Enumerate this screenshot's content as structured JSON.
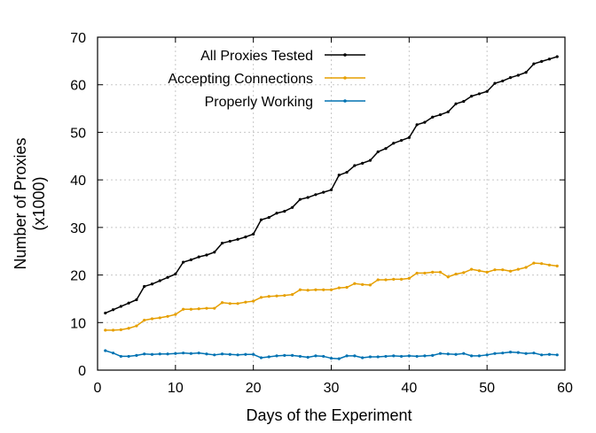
{
  "chart_data": {
    "type": "line",
    "xlabel": "Days of the Experiment",
    "ylabel": [
      "Number of Proxies",
      "(x1000)"
    ],
    "xlim": [
      0,
      60
    ],
    "ylim": [
      0,
      70
    ],
    "xticks": [
      0,
      10,
      20,
      30,
      40,
      50,
      60
    ],
    "yticks": [
      0,
      10,
      20,
      30,
      40,
      50,
      60,
      70
    ],
    "grid": true,
    "legend_position": "top-left",
    "x": [
      1,
      2,
      3,
      4,
      5,
      6,
      7,
      8,
      9,
      10,
      11,
      12,
      13,
      14,
      15,
      16,
      17,
      18,
      19,
      20,
      21,
      22,
      23,
      24,
      25,
      26,
      27,
      28,
      29,
      30,
      31,
      32,
      33,
      34,
      35,
      36,
      37,
      38,
      39,
      40,
      41,
      42,
      43,
      44,
      45,
      46,
      47,
      48,
      49,
      50,
      51,
      52,
      53,
      54,
      55,
      56,
      57,
      58,
      59
    ],
    "series": [
      {
        "name": "All Proxies Tested",
        "color": "#000000",
        "values": [
          12.0,
          12.7,
          13.4,
          14.1,
          14.8,
          17.6,
          18.1,
          18.8,
          19.5,
          20.2,
          22.7,
          23.2,
          23.8,
          24.2,
          24.8,
          26.7,
          27.1,
          27.5,
          28.0,
          28.6,
          31.6,
          32.1,
          33.0,
          33.4,
          34.2,
          35.9,
          36.3,
          36.9,
          37.4,
          37.9,
          41.0,
          41.6,
          43.0,
          43.5,
          44.1,
          45.9,
          46.6,
          47.7,
          48.3,
          48.9,
          51.6,
          52.1,
          53.2,
          53.7,
          54.3,
          56.0,
          56.5,
          57.6,
          58.1,
          58.6,
          60.3,
          60.8,
          61.5,
          62.0,
          62.6,
          64.4,
          64.9,
          65.4,
          65.9
        ]
      },
      {
        "name": "Accepting Connections",
        "color": "#e69f00",
        "values": [
          8.4,
          8.4,
          8.5,
          8.8,
          9.3,
          10.5,
          10.8,
          11.0,
          11.3,
          11.7,
          12.8,
          12.8,
          12.9,
          13.0,
          13.0,
          14.2,
          14.0,
          14.0,
          14.3,
          14.5,
          15.3,
          15.5,
          15.6,
          15.7,
          15.9,
          16.9,
          16.8,
          16.9,
          16.9,
          16.9,
          17.3,
          17.4,
          18.2,
          18.0,
          17.9,
          19.0,
          19.0,
          19.1,
          19.1,
          19.3,
          20.4,
          20.4,
          20.6,
          20.6,
          19.6,
          20.2,
          20.5,
          21.2,
          20.9,
          20.6,
          21.1,
          21.1,
          20.8,
          21.2,
          21.6,
          22.5,
          22.4,
          22.1,
          21.9
        ]
      },
      {
        "name": "Properly Working",
        "color": "#0072b2",
        "values": [
          4.1,
          3.6,
          2.9,
          2.9,
          3.1,
          3.4,
          3.3,
          3.4,
          3.4,
          3.5,
          3.6,
          3.5,
          3.6,
          3.4,
          3.2,
          3.4,
          3.3,
          3.2,
          3.3,
          3.3,
          2.6,
          2.8,
          3.0,
          3.1,
          3.1,
          2.9,
          2.7,
          3.0,
          2.9,
          2.5,
          2.4,
          3.0,
          3.0,
          2.6,
          2.8,
          2.8,
          2.9,
          3.0,
          2.9,
          3.0,
          2.9,
          3.0,
          3.1,
          3.5,
          3.4,
          3.3,
          3.5,
          3.0,
          3.0,
          3.2,
          3.5,
          3.6,
          3.8,
          3.7,
          3.5,
          3.6,
          3.2,
          3.3,
          3.2
        ]
      }
    ]
  }
}
